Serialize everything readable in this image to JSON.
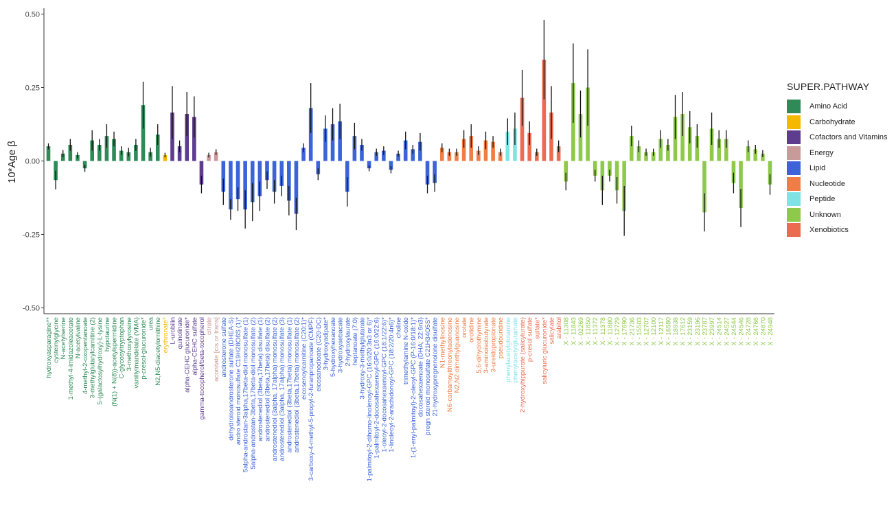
{
  "chart_data": {
    "type": "bar",
    "ylabel": "10*Age β",
    "ylim": [
      -0.52,
      0.52
    ],
    "yticks": [
      -0.5,
      -0.25,
      0.0,
      0.25,
      0.5
    ],
    "ytick_labels": [
      "-0.50",
      "-0.25",
      "0.00",
      "0.25",
      "0.50"
    ],
    "legend_title": "SUPER.PATHWAY",
    "legend_position": "right",
    "pathways": [
      {
        "name": "Amino Acid",
        "color": "#2E8B57"
      },
      {
        "name": "Carbohydrate",
        "color": "#F5B800"
      },
      {
        "name": "Cofactors and Vitamins",
        "color": "#5E3C8E"
      },
      {
        "name": "Energy",
        "color": "#C99A9A"
      },
      {
        "name": "Lipid",
        "color": "#3C64D8"
      },
      {
        "name": "Nucleotide",
        "color": "#EF7D45"
      },
      {
        "name": "Peptide",
        "color": "#7FE3E6"
      },
      {
        "name": "Unknown",
        "color": "#8FC94C"
      },
      {
        "name": "Xenobiotics",
        "color": "#EA6B50"
      }
    ],
    "bars": [
      {
        "label": "hydroxyasparagine**",
        "pathway": 0,
        "value": 0.05,
        "se": 0.01
      },
      {
        "label": "cysteinylglycine",
        "pathway": 0,
        "value": -0.065,
        "se": 0.032
      },
      {
        "label": "N-acetylserine",
        "pathway": 0,
        "value": 0.025,
        "se": 0.012
      },
      {
        "label": "1-methyl-4-imidazoleacetate",
        "pathway": 0,
        "value": 0.055,
        "se": 0.02
      },
      {
        "label": "N-acetylvaline",
        "pathway": 0,
        "value": 0.02,
        "se": 0.01
      },
      {
        "label": "4-methyl-2-oxopentanoate",
        "pathway": 0,
        "value": -0.025,
        "se": 0.012
      },
      {
        "label": "3-methylglutarylcarnitine (2)",
        "pathway": 0,
        "value": 0.07,
        "se": 0.035
      },
      {
        "label": "5-(galactosylhydroxy)-L-lysine",
        "pathway": 0,
        "value": 0.055,
        "se": 0.02
      },
      {
        "label": "hypotaurine",
        "pathway": 0,
        "value": 0.085,
        "se": 0.04
      },
      {
        "label": "(N(1) + N(8))-acetylspermidine",
        "pathway": 0,
        "value": 0.075,
        "se": 0.025
      },
      {
        "label": "C-glycosyltryptophan",
        "pathway": 0,
        "value": 0.035,
        "se": 0.015
      },
      {
        "label": "3-methoxytyrosine",
        "pathway": 0,
        "value": 0.03,
        "se": 0.015
      },
      {
        "label": "vanillylmandelate (VMA)",
        "pathway": 0,
        "value": 0.055,
        "se": 0.02
      },
      {
        "label": "p-cresol-glucuronide*",
        "pathway": 0,
        "value": 0.19,
        "se": 0.08
      },
      {
        "label": "urea",
        "pathway": 0,
        "value": 0.03,
        "se": 0.015
      },
      {
        "label": "N2,N5-diacetylornithine",
        "pathway": 0,
        "value": 0.09,
        "se": 0.035
      },
      {
        "label": "erythronate*",
        "pathway": 1,
        "value": 0.02,
        "se": 0.008
      },
      {
        "label": "L-urobilin",
        "pathway": 2,
        "value": 0.165,
        "se": 0.09
      },
      {
        "label": "quinolinate",
        "pathway": 2,
        "value": 0.05,
        "se": 0.02
      },
      {
        "label": "alpha-CEHC glucuronide*",
        "pathway": 2,
        "value": 0.16,
        "se": 0.075
      },
      {
        "label": "alpha-CEHC sulfate",
        "pathway": 2,
        "value": 0.15,
        "se": 0.07
      },
      {
        "label": "gamma-tocopherol/beta-tocopherol",
        "pathway": 2,
        "value": -0.08,
        "se": 0.03
      },
      {
        "label": "citrate",
        "pathway": 3,
        "value": 0.02,
        "se": 0.008
      },
      {
        "label": "aconitate [cis or trans]",
        "pathway": 3,
        "value": 0.03,
        "se": 0.01
      },
      {
        "label": "androsterone sulfate",
        "pathway": 4,
        "value": -0.105,
        "se": 0.045
      },
      {
        "label": "dehydroisoandrosterone sulfate (DHEA-S)",
        "pathway": 4,
        "value": -0.165,
        "se": 0.035
      },
      {
        "label": "andro steroid monosulfate C19H28O6S (1)*",
        "pathway": 4,
        "value": -0.13,
        "se": 0.04
      },
      {
        "label": "5alpha-androstan-3alpha,17beta-diol monosulfate (1)",
        "pathway": 4,
        "value": -0.165,
        "se": 0.065
      },
      {
        "label": "5alpha-androstan-3beta,17beta-diol monosulfate (2)",
        "pathway": 4,
        "value": -0.14,
        "se": 0.065
      },
      {
        "label": "androstenediol (3beta,17beta) disulfate (1)",
        "pathway": 4,
        "value": -0.12,
        "se": 0.05
      },
      {
        "label": "androstenediol (3beta,17beta) disulfate (2)",
        "pathway": 4,
        "value": -0.065,
        "se": 0.03
      },
      {
        "label": "androstenediol (3alpha, 17alpha) monosulfate (2)",
        "pathway": 4,
        "value": -0.105,
        "se": 0.04
      },
      {
        "label": "androstenediol (3alpha, 17alpha) monosulfate (3)",
        "pathway": 4,
        "value": -0.085,
        "se": 0.035
      },
      {
        "label": "androstenediol (3beta,17beta) monosulfate (1)",
        "pathway": 4,
        "value": -0.135,
        "se": 0.05
      },
      {
        "label": "androstenediol (3beta,17beta) monosulfate (2)",
        "pathway": 4,
        "value": -0.18,
        "se": 0.055
      },
      {
        "label": "eicosenoylcarnitine (C20:1)*",
        "pathway": 4,
        "value": 0.045,
        "se": 0.015
      },
      {
        "label": "3-carboxy-4-methyl-5-propyl-2-furanpropanoate (CMPF)",
        "pathway": 4,
        "value": 0.18,
        "se": 0.085
      },
      {
        "label": "eicosanodioate (C20-DC)",
        "pathway": 4,
        "value": -0.045,
        "se": 0.02
      },
      {
        "label": "3-hydroxyadipate*",
        "pathway": 4,
        "value": 0.11,
        "se": 0.045
      },
      {
        "label": "5-hydroxyhexanoate",
        "pathway": 4,
        "value": 0.125,
        "se": 0.055
      },
      {
        "label": "3-hydroxysebacate",
        "pathway": 4,
        "value": 0.135,
        "se": 0.06
      },
      {
        "label": "2-hydroxylaurate",
        "pathway": 4,
        "value": -0.105,
        "se": 0.05
      },
      {
        "label": "heptanoate (7:0)",
        "pathway": 4,
        "value": 0.085,
        "se": 0.045
      },
      {
        "label": "3-hydroxy-3-methylglutarate",
        "pathway": 4,
        "value": 0.055,
        "se": 0.02
      },
      {
        "label": "1-palmitoyl-2-dihomo-linolenoyl-GPC (16:0/20:3n3 or 6)*",
        "pathway": 4,
        "value": -0.025,
        "se": 0.01
      },
      {
        "label": "1-palmitoyl-2-docosahexaenoyl-GPC (16:0/22:6)",
        "pathway": 4,
        "value": 0.03,
        "se": 0.012
      },
      {
        "label": "1-oleoyl-2-docosahexaenoyl-GPC (18:1/22:6)*",
        "pathway": 4,
        "value": 0.035,
        "se": 0.015
      },
      {
        "label": "1-linoleoyl-2-arachidonoyl-GPC (18:2/20:4n6)*",
        "pathway": 4,
        "value": -0.03,
        "se": 0.012
      },
      {
        "label": "choline",
        "pathway": 4,
        "value": 0.025,
        "se": 0.01
      },
      {
        "label": "trimethylamine N-oxide",
        "pathway": 4,
        "value": 0.07,
        "se": 0.03
      },
      {
        "label": "1-(1-enyl-palmitoyl)-2-oleoyl-GPC (P-16:0/18:1)*",
        "pathway": 4,
        "value": 0.04,
        "se": 0.015
      },
      {
        "label": "docosahexaenoate (DHA; 22:6n3)",
        "pathway": 4,
        "value": 0.065,
        "se": 0.03
      },
      {
        "label": "pregn steroid monosulfate C21H34O5S*",
        "pathway": 4,
        "value": -0.08,
        "se": 0.03
      },
      {
        "label": "21-hydroxypregnenolone disulfate",
        "pathway": 4,
        "value": -0.075,
        "se": 0.03
      },
      {
        "label": "N1-methylinosine",
        "pathway": 5,
        "value": 0.045,
        "se": 0.015
      },
      {
        "label": "N6-carbamoylthreonyladenosine",
        "pathway": 5,
        "value": 0.03,
        "se": 0.012
      },
      {
        "label": "N2,N2-dimethylguanosine",
        "pathway": 5,
        "value": 0.03,
        "se": 0.012
      },
      {
        "label": "orotate",
        "pathway": 5,
        "value": 0.075,
        "se": 0.03
      },
      {
        "label": "orotidine",
        "pathway": 5,
        "value": 0.085,
        "se": 0.04
      },
      {
        "label": "5,6-dihydrothymine",
        "pathway": 5,
        "value": 0.035,
        "se": 0.015
      },
      {
        "label": "3-aminoisobutyrate",
        "pathway": 5,
        "value": 0.07,
        "se": 0.03
      },
      {
        "label": "3-ureidopropionate",
        "pathway": 5,
        "value": 0.065,
        "se": 0.02
      },
      {
        "label": "pseudouridine",
        "pathway": 5,
        "value": 0.03,
        "se": 0.012
      },
      {
        "label": "phenylacetylglutamine",
        "pathway": 6,
        "value": 0.1,
        "se": 0.045
      },
      {
        "label": "phenylacetylglutamate",
        "pathway": 6,
        "value": 0.11,
        "se": 0.055
      },
      {
        "label": "2-hydroxyhippurate (salicylurate)",
        "pathway": 8,
        "value": 0.215,
        "se": 0.095
      },
      {
        "label": "p-cresol sulfate",
        "pathway": 8,
        "value": 0.095,
        "se": 0.04
      },
      {
        "label": "sulfate*",
        "pathway": 8,
        "value": 0.03,
        "se": 0.012
      },
      {
        "label": "salicyluric glucuronide*",
        "pathway": 8,
        "value": 0.345,
        "se": 0.135
      },
      {
        "label": "salicylate",
        "pathway": 8,
        "value": 0.165,
        "se": 0.09
      },
      {
        "label": "arabitol",
        "pathway": 8,
        "value": 0.05,
        "se": 0.02
      },
      {
        "label": "X - 11308",
        "pathway": 7,
        "value": -0.07,
        "se": 0.03
      },
      {
        "label": "X - 11843",
        "pathway": 7,
        "value": 0.265,
        "se": 0.135
      },
      {
        "label": "X - 02269",
        "pathway": 7,
        "value": 0.16,
        "se": 0.08
      },
      {
        "label": "X - 11850",
        "pathway": 7,
        "value": 0.25,
        "se": 0.13
      },
      {
        "label": "X - 11372",
        "pathway": 7,
        "value": -0.05,
        "se": 0.02
      },
      {
        "label": "X - 11378",
        "pathway": 7,
        "value": -0.1,
        "se": 0.05
      },
      {
        "label": "X - 11880",
        "pathway": 7,
        "value": -0.05,
        "se": 0.02
      },
      {
        "label": "X - 12729",
        "pathway": 7,
        "value": -0.1,
        "se": 0.045
      },
      {
        "label": "X - 17690",
        "pathway": 7,
        "value": -0.17,
        "se": 0.085
      },
      {
        "label": "X - 21736",
        "pathway": 7,
        "value": 0.085,
        "se": 0.035
      },
      {
        "label": "X - 15503",
        "pathway": 7,
        "value": 0.05,
        "se": 0.02
      },
      {
        "label": "X - 12707",
        "pathway": 7,
        "value": 0.03,
        "se": 0.012
      },
      {
        "label": "X - 12100",
        "pathway": 7,
        "value": 0.03,
        "se": 0.012
      },
      {
        "label": "X - 12117",
        "pathway": 7,
        "value": 0.075,
        "se": 0.03
      },
      {
        "label": "X - 16580",
        "pathway": 7,
        "value": 0.055,
        "se": 0.02
      },
      {
        "label": "X - 18938",
        "pathway": 7,
        "value": 0.15,
        "se": 0.075
      },
      {
        "label": "X - 17612",
        "pathway": 7,
        "value": 0.16,
        "se": 0.075
      },
      {
        "label": "X - 23159",
        "pathway": 7,
        "value": 0.115,
        "se": 0.055
      },
      {
        "label": "X - 23196",
        "pathway": 7,
        "value": 0.085,
        "se": 0.04
      },
      {
        "label": "X - 23787",
        "pathway": 7,
        "value": -0.175,
        "se": 0.065
      },
      {
        "label": "X - 23997",
        "pathway": 7,
        "value": 0.11,
        "se": 0.055
      },
      {
        "label": "X - 24514",
        "pathway": 7,
        "value": 0.075,
        "se": 0.03
      },
      {
        "label": "X - 24527",
        "pathway": 7,
        "value": 0.075,
        "se": 0.03
      },
      {
        "label": "X - 24544",
        "pathway": 7,
        "value": -0.075,
        "se": 0.035
      },
      {
        "label": "X - 24546",
        "pathway": 7,
        "value": -0.16,
        "se": 0.065
      },
      {
        "label": "X - 24728",
        "pathway": 7,
        "value": 0.05,
        "se": 0.02
      },
      {
        "label": "X - 24766",
        "pathway": 7,
        "value": 0.04,
        "se": 0.015
      },
      {
        "label": "X - 24870",
        "pathway": 7,
        "value": 0.025,
        "se": 0.012
      },
      {
        "label": "X - 24948",
        "pathway": 7,
        "value": -0.08,
        "se": 0.035
      }
    ]
  }
}
